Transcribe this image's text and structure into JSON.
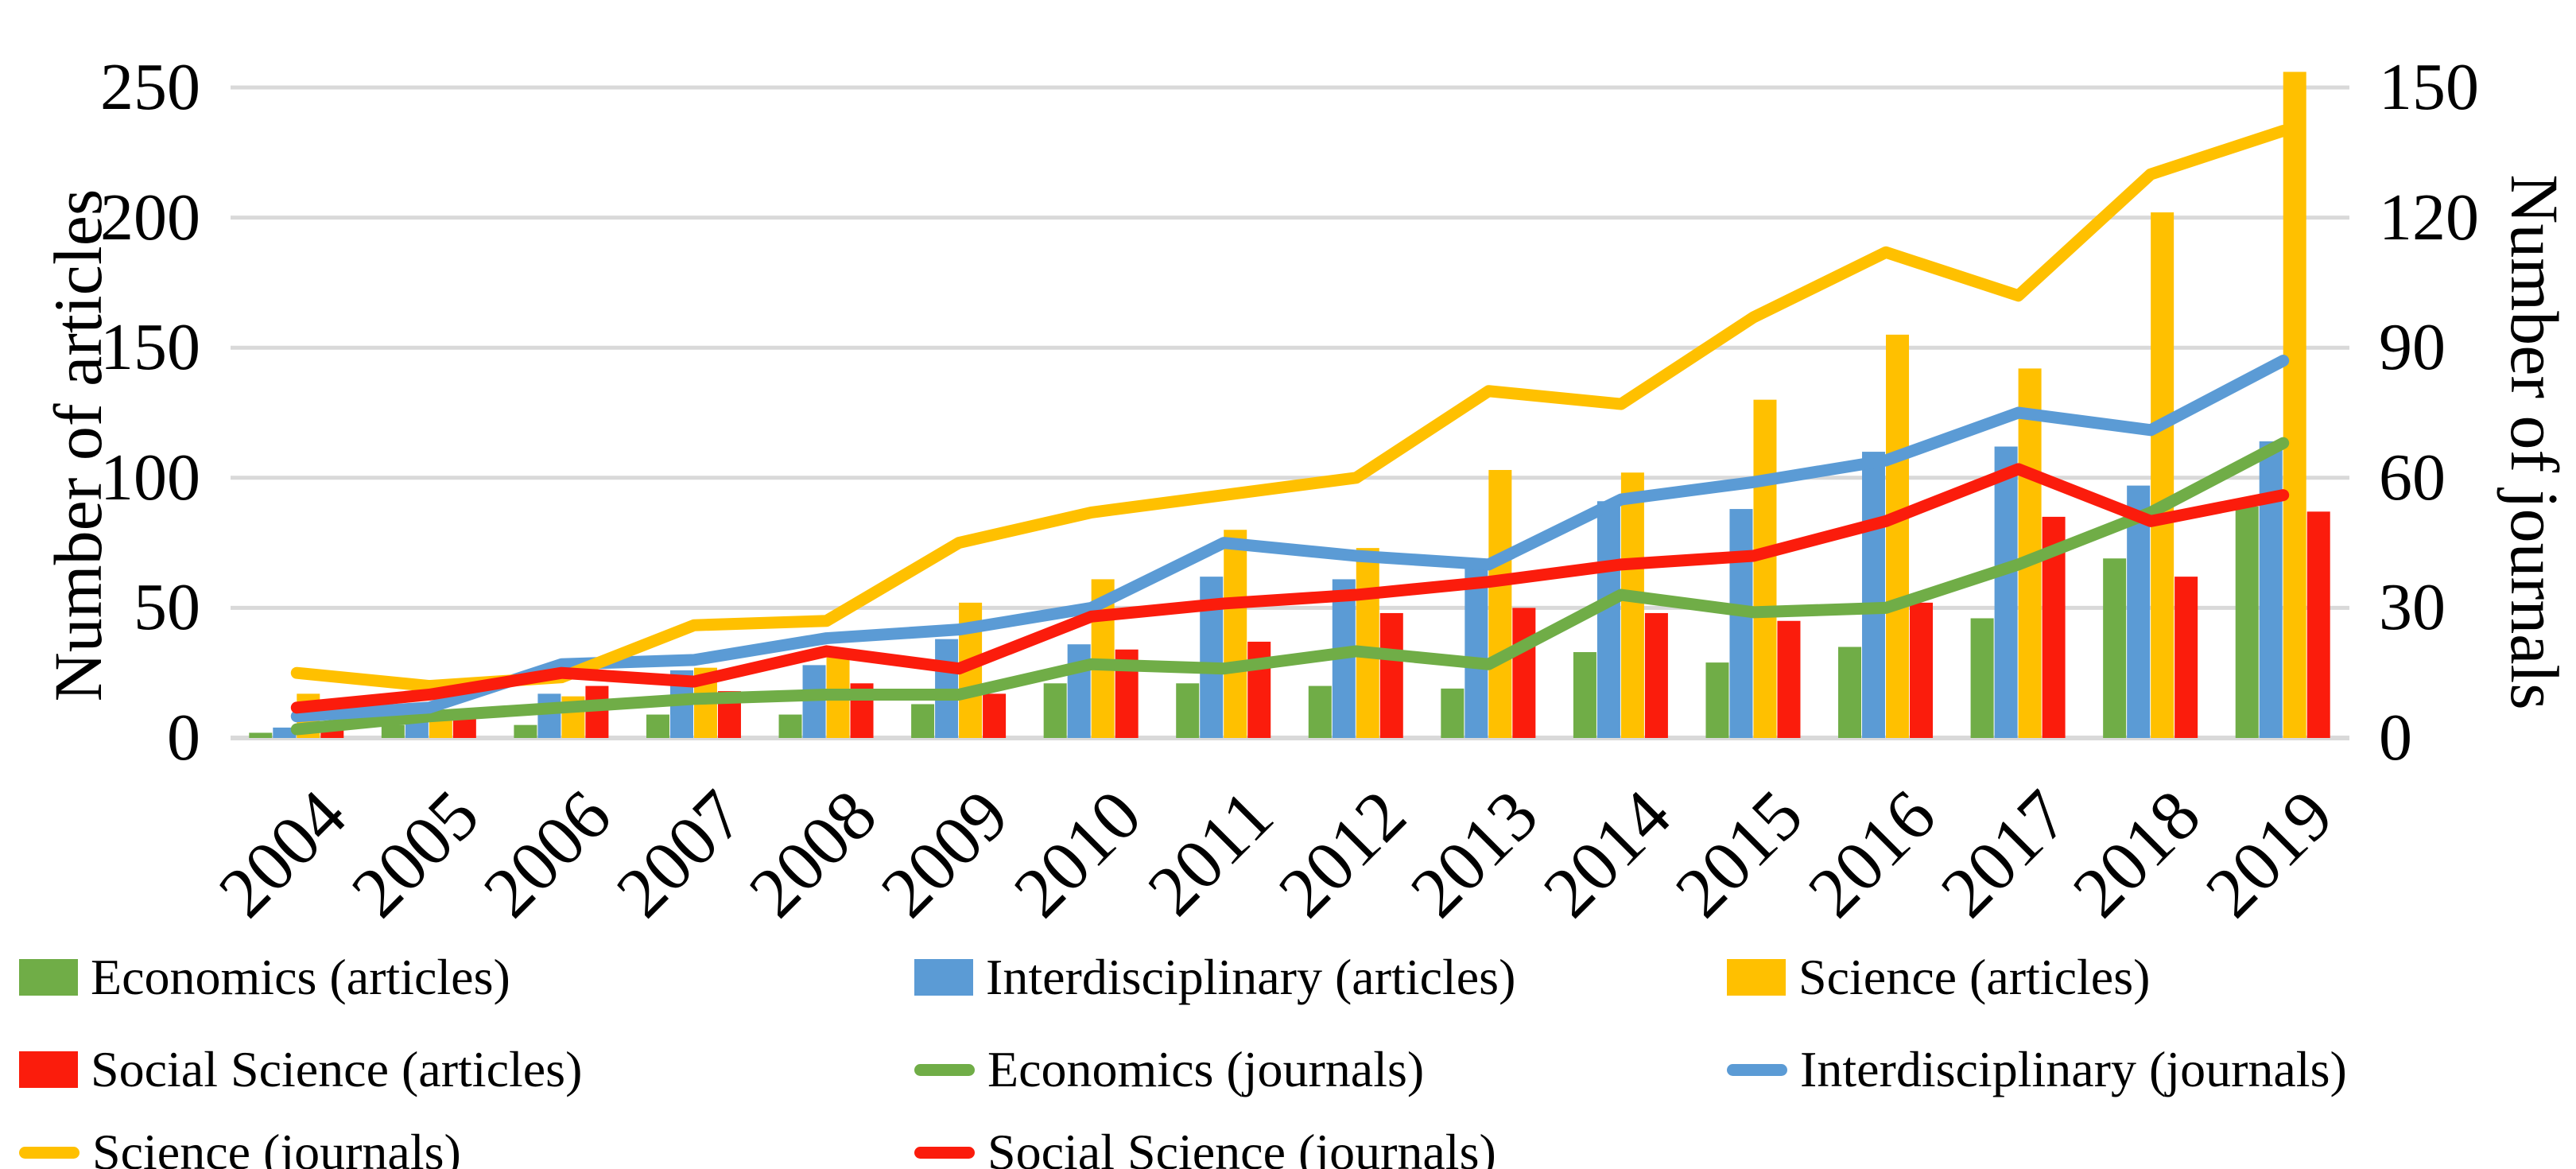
{
  "chart_data": {
    "type": "bar+line combo",
    "categories": [
      "2004",
      "2005",
      "2006",
      "2007",
      "2008",
      "2009",
      "2010",
      "2011",
      "2012",
      "2013",
      "2014",
      "2015",
      "2016",
      "2017",
      "2018",
      "2019"
    ],
    "left_axis": {
      "label": "Number of articles",
      "min": 0,
      "max": 250,
      "step": 50,
      "ticks": [
        0,
        50,
        100,
        150,
        200,
        250
      ]
    },
    "right_axis": {
      "label": "Number of journals",
      "min": 0,
      "max": 150,
      "step": 30,
      "ticks": [
        0,
        30,
        60,
        90,
        120,
        150
      ]
    },
    "grid": "horizontal",
    "gridline_color": "#D9D9D9",
    "bar_series": [
      {
        "name": "Economics (articles)",
        "color": "#70AD47",
        "values": [
          2,
          5,
          5,
          9,
          9,
          13,
          21,
          21,
          20,
          19,
          33,
          29,
          35,
          46,
          69,
          89
        ]
      },
      {
        "name": "Interdisciplinary (articles)",
        "color": "#5B9BD5",
        "values": [
          4,
          6,
          17,
          26,
          28,
          38,
          36,
          62,
          61,
          68,
          91,
          88,
          110,
          112,
          97,
          114
        ]
      },
      {
        "name": "Science (articles)",
        "color": "#FFC000",
        "values": [
          17,
          7,
          16,
          27,
          31,
          52,
          61,
          80,
          73,
          103,
          102,
          130,
          155,
          142,
          202,
          256
        ]
      },
      {
        "name": "Social Science (articles)",
        "color": "#FB1C0C",
        "values": [
          3,
          11,
          20,
          18,
          21,
          17,
          34,
          37,
          48,
          50,
          48,
          45,
          52,
          85,
          62,
          87
        ]
      }
    ],
    "line_series": [
      {
        "name": "Economics (journals)",
        "color": "#70AD47",
        "values": [
          2,
          5,
          7,
          9,
          10,
          10,
          17,
          16,
          20,
          17,
          33,
          29,
          30,
          40,
          52,
          68
        ]
      },
      {
        "name": "Interdisciplinary (journals)",
        "color": "#5B9BD5",
        "values": [
          5,
          7,
          17,
          18,
          23,
          25,
          30,
          45,
          42,
          40,
          55,
          59,
          64,
          75,
          71,
          87
        ]
      },
      {
        "name": "Science (journals)",
        "color": "#FFC000",
        "values": [
          15,
          12,
          14,
          26,
          27,
          45,
          52,
          56,
          60,
          80,
          77,
          97,
          112,
          102,
          130,
          140
        ]
      },
      {
        "name": "Social Science (journals)",
        "color": "#FB1C0C",
        "values": [
          7,
          10,
          15,
          13,
          20,
          16,
          28,
          31,
          33,
          36,
          40,
          42,
          50,
          62,
          50,
          56
        ]
      }
    ],
    "legend": {
      "position": "bottom",
      "items": [
        {
          "label": "Economics (articles)",
          "type": "bar",
          "color": "#70AD47",
          "row": 0,
          "col": 0
        },
        {
          "label": "Interdisciplinary (articles)",
          "type": "bar",
          "color": "#5B9BD5",
          "row": 0,
          "col": 1
        },
        {
          "label": "Science (articles)",
          "type": "bar",
          "color": "#FFC000",
          "row": 0,
          "col": 2
        },
        {
          "label": "Social Science (articles)",
          "type": "bar",
          "color": "#FB1C0C",
          "row": 1,
          "col": 0
        },
        {
          "label": "Economics (journals)",
          "type": "line",
          "color": "#70AD47",
          "row": 1,
          "col": 1
        },
        {
          "label": "Interdisciplinary (journals)",
          "type": "line",
          "color": "#5B9BD5",
          "row": 1,
          "col": 2
        },
        {
          "label": "Science (journals)",
          "type": "line",
          "color": "#FFC000",
          "row": 2,
          "col": 0
        },
        {
          "label": "Social Science (journals)",
          "type": "line",
          "color": "#FB1C0C",
          "row": 2,
          "col": 1
        }
      ]
    }
  }
}
